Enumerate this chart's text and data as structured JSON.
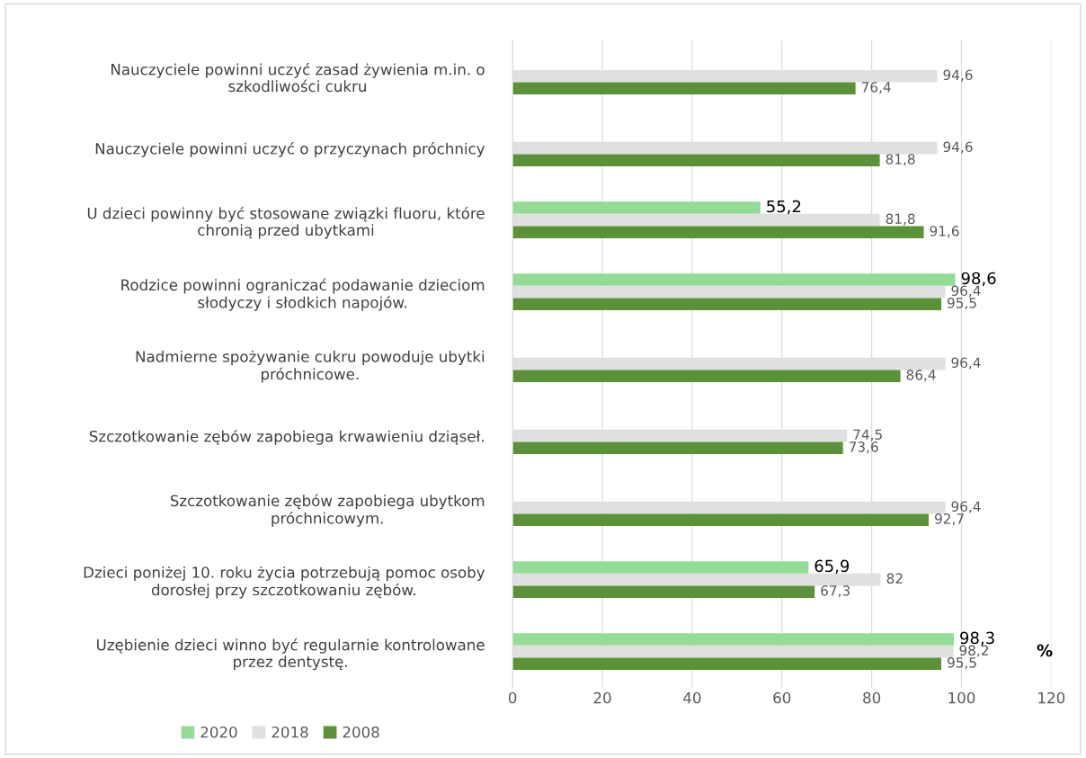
{
  "chart_data": {
    "type": "bar",
    "orientation": "horizontal",
    "categories": [
      "Nauczyciele powinni uczyć zasad żywienia m.in. o\nszkodliwości cukru",
      "Nauczyciele powinni uczyć o przyczynach próchnicy",
      "U dzieci powinny być stosowane związki fluoru, które\nchronią przed ubytkami",
      "Rodzice powinni ograniczać podawanie dzieciom\nsłodyczy i słodkich napojów.",
      "Nadmierne spożywanie cukru powoduje ubytki\npróchnicowe.",
      "Szczotkowanie zębów zapobiega krwawieniu dziąseł.",
      "Szczotkowanie zębów zapobiega ubytkom\npróchnicowym.",
      "Dzieci poniżej 10. roku życia potrzebują pomoc osoby\ndorosłej przy szczotkowaniu zębów.",
      "Uzębienie dzieci winno być regularnie kontrolowane\nprzez dentystę."
    ],
    "series": [
      {
        "name": "2020",
        "color": "#92dc96",
        "values": [
          null,
          null,
          55.2,
          98.6,
          null,
          null,
          null,
          65.9,
          98.3
        ],
        "value_labels": [
          null,
          null,
          "55,2",
          "98,6",
          null,
          null,
          null,
          "65,9",
          "98,3"
        ]
      },
      {
        "name": "2018",
        "color": "#e0e0e0",
        "values": [
          94.6,
          94.6,
          81.8,
          96.4,
          96.4,
          74.5,
          96.4,
          82,
          98.2
        ],
        "value_labels": [
          "94,6",
          "94,6",
          "81,8",
          "96,4",
          "96,4",
          "74,5",
          "96,4",
          "82",
          "98,2"
        ]
      },
      {
        "name": "2008",
        "color": "#5b9137",
        "values": [
          76.4,
          81.8,
          91.6,
          95.5,
          86.4,
          73.6,
          92.7,
          67.3,
          95.5
        ],
        "value_labels": [
          "76,4",
          "81,8",
          "91,6",
          "95,5",
          "86,4",
          "73,6",
          "92,7",
          "67,3",
          "95,5"
        ]
      }
    ],
    "xlim": [
      0,
      120
    ],
    "xticks": [
      0,
      20,
      40,
      60,
      80,
      100,
      120
    ],
    "grid": "x",
    "legend": "bottom left",
    "annotations": [
      "%"
    ]
  }
}
